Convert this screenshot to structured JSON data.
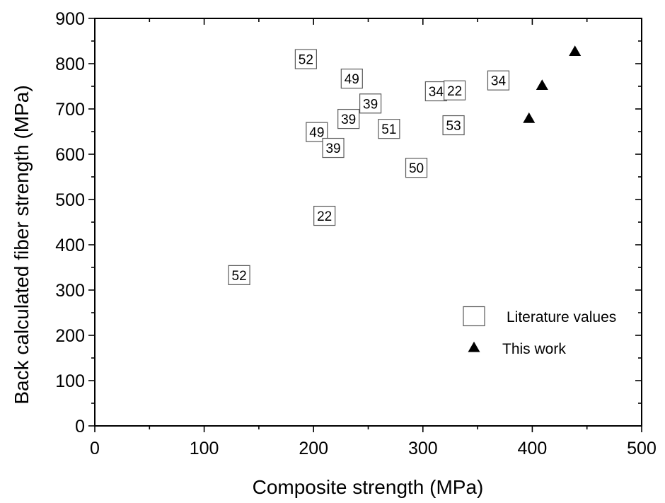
{
  "chart_data": {
    "type": "scatter",
    "xlabel": "Composite strength (MPa)",
    "ylabel": "Back calculated fiber strength (MPa)",
    "xlim": [
      0,
      500
    ],
    "ylim": [
      0,
      900
    ],
    "x_ticks": [
      "0",
      "100",
      "200",
      "300",
      "400",
      "500"
    ],
    "y_ticks": [
      "0",
      "100",
      "200",
      "300",
      "400",
      "500",
      "600",
      "700",
      "800",
      "900"
    ],
    "grid": false,
    "legend_position": "bottom-right",
    "series": [
      {
        "name": "Literature values",
        "marker": "open-square",
        "color": "#5a5a5a",
        "points": [
          {
            "x": 193,
            "y": 810,
            "label": "52"
          },
          {
            "x": 235,
            "y": 767,
            "label": "49"
          },
          {
            "x": 252,
            "y": 712,
            "label": "39"
          },
          {
            "x": 312,
            "y": 739,
            "label": "34"
          },
          {
            "x": 329,
            "y": 741,
            "label": "22"
          },
          {
            "x": 369,
            "y": 763,
            "label": "34"
          },
          {
            "x": 232,
            "y": 678,
            "label": "39"
          },
          {
            "x": 269,
            "y": 656,
            "label": "51"
          },
          {
            "x": 328,
            "y": 664,
            "label": "53"
          },
          {
            "x": 203,
            "y": 649,
            "label": "49"
          },
          {
            "x": 218,
            "y": 614,
            "label": "39"
          },
          {
            "x": 294,
            "y": 570,
            "label": "50"
          },
          {
            "x": 210,
            "y": 464,
            "label": "22"
          },
          {
            "x": 132,
            "y": 333,
            "label": "52"
          }
        ]
      },
      {
        "name": "This work",
        "marker": "filled-triangle",
        "color": "#000000",
        "points": [
          {
            "x": 397,
            "y": 678
          },
          {
            "x": 409,
            "y": 751
          },
          {
            "x": 439,
            "y": 826
          }
        ]
      }
    ]
  }
}
